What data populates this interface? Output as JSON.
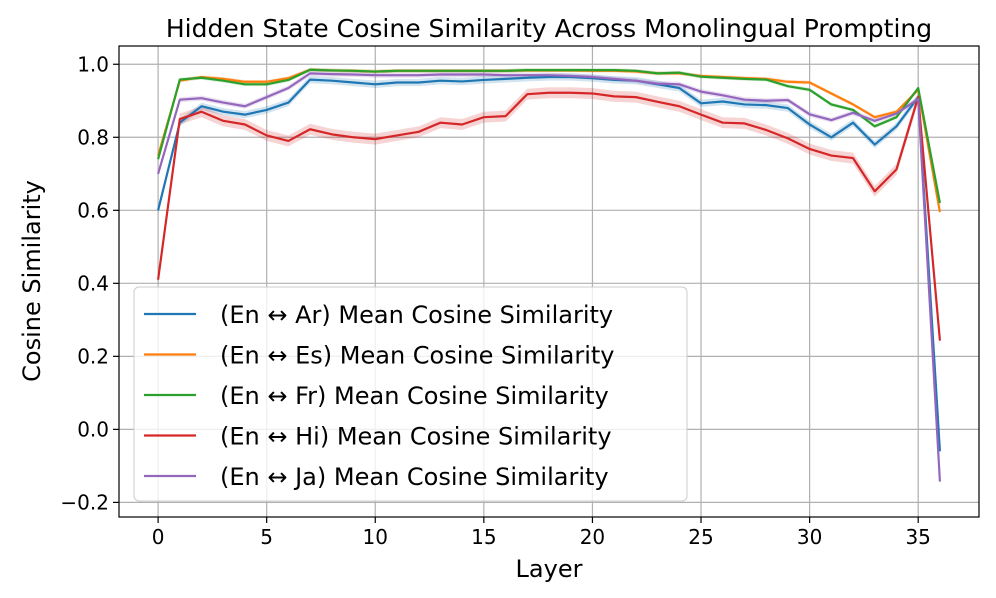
{
  "chart_data": {
    "type": "line",
    "title": "Hidden State Cosine Similarity Across Monolingual Prompting",
    "xlabel": "Layer",
    "ylabel": "Cosine Similarity",
    "xlim": [
      -1.8,
      37.8
    ],
    "ylim": [
      -0.24,
      1.05
    ],
    "xticks": [
      0,
      5,
      10,
      15,
      20,
      25,
      30,
      35
    ],
    "xtick_labels": [
      "0",
      "5",
      "10",
      "15",
      "20",
      "25",
      "30",
      "35"
    ],
    "yticks": [
      -0.2,
      0.0,
      0.2,
      0.4,
      0.6,
      0.8,
      1.0
    ],
    "ytick_labels": [
      "−0.2",
      "0.0",
      "0.2",
      "0.4",
      "0.6",
      "0.8",
      "1.0"
    ],
    "grid": true,
    "legend_position": "lower-left",
    "x": [
      0,
      1,
      2,
      3,
      4,
      5,
      6,
      7,
      8,
      9,
      10,
      11,
      12,
      13,
      14,
      15,
      16,
      17,
      18,
      19,
      20,
      21,
      22,
      23,
      24,
      25,
      26,
      27,
      28,
      29,
      30,
      31,
      32,
      33,
      34,
      35,
      36
    ],
    "series": [
      {
        "name": "(En ↔ Ar) Mean Cosine Similarity",
        "color": "#1f77b4",
        "values": [
          0.6,
          0.84,
          0.885,
          0.87,
          0.862,
          0.875,
          0.895,
          0.958,
          0.955,
          0.95,
          0.945,
          0.95,
          0.95,
          0.955,
          0.953,
          0.957,
          0.96,
          0.963,
          0.965,
          0.965,
          0.962,
          0.957,
          0.955,
          0.945,
          0.935,
          0.893,
          0.898,
          0.89,
          0.888,
          0.88,
          0.835,
          0.8,
          0.84,
          0.78,
          0.83,
          0.91,
          -0.06
        ],
        "band": 0.01
      },
      {
        "name": "(En ↔ Es) Mean Cosine Similarity",
        "color": "#ff7f0e",
        "values": [
          0.75,
          0.955,
          0.965,
          0.96,
          0.952,
          0.952,
          0.962,
          0.985,
          0.983,
          0.982,
          0.98,
          0.982,
          0.982,
          0.982,
          0.982,
          0.982,
          0.982,
          0.983,
          0.983,
          0.983,
          0.982,
          0.982,
          0.98,
          0.975,
          0.975,
          0.968,
          0.965,
          0.962,
          0.96,
          0.952,
          0.95,
          0.92,
          0.89,
          0.855,
          0.87,
          0.93,
          0.595
        ],
        "band": 0.005
      },
      {
        "name": "(En ↔ Fr) Mean Cosine Similarity",
        "color": "#2ca02c",
        "values": [
          0.74,
          0.958,
          0.963,
          0.955,
          0.945,
          0.945,
          0.957,
          0.985,
          0.983,
          0.982,
          0.98,
          0.982,
          0.982,
          0.982,
          0.982,
          0.982,
          0.982,
          0.984,
          0.984,
          0.984,
          0.984,
          0.984,
          0.982,
          0.975,
          0.977,
          0.966,
          0.963,
          0.96,
          0.958,
          0.94,
          0.93,
          0.89,
          0.875,
          0.83,
          0.855,
          0.935,
          0.62
        ],
        "band": 0.005
      },
      {
        "name": "(En ↔ Hi) Mean Cosine Similarity",
        "color": "#d62728",
        "values": [
          0.41,
          0.85,
          0.87,
          0.845,
          0.835,
          0.805,
          0.79,
          0.822,
          0.808,
          0.8,
          0.795,
          0.805,
          0.815,
          0.84,
          0.835,
          0.855,
          0.858,
          0.918,
          0.922,
          0.922,
          0.92,
          0.912,
          0.91,
          0.897,
          0.885,
          0.862,
          0.84,
          0.838,
          0.82,
          0.797,
          0.768,
          0.75,
          0.743,
          0.652,
          0.712,
          0.91,
          0.243
        ],
        "band": 0.015
      },
      {
        "name": "(En ↔ Ja) Mean Cosine Similarity",
        "color": "#9467bd",
        "values": [
          0.7,
          0.903,
          0.907,
          0.895,
          0.885,
          0.91,
          0.935,
          0.975,
          0.973,
          0.972,
          0.97,
          0.97,
          0.97,
          0.972,
          0.972,
          0.972,
          0.97,
          0.97,
          0.97,
          0.968,
          0.965,
          0.96,
          0.955,
          0.947,
          0.945,
          0.925,
          0.915,
          0.903,
          0.9,
          0.902,
          0.863,
          0.847,
          0.867,
          0.845,
          0.865,
          0.905,
          -0.143
        ],
        "band": 0.007
      }
    ]
  }
}
